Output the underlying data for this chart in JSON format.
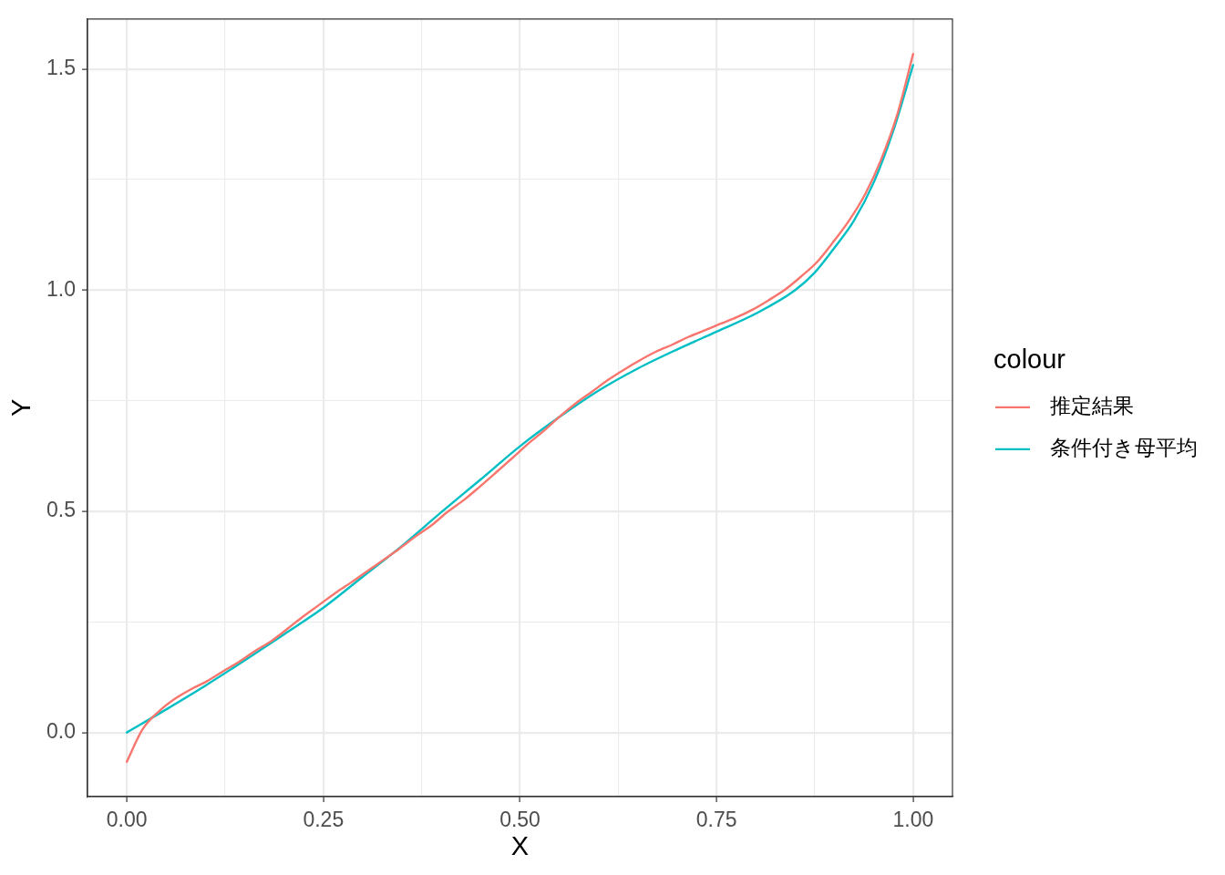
{
  "chart_data": {
    "type": "line",
    "xlabel": "X",
    "ylabel": "Y",
    "legend_title": "colour",
    "legend": "right",
    "grid": true,
    "xlim": [
      -0.05,
      1.05
    ],
    "ylim": [
      -0.145,
      1.613
    ],
    "xticks": [
      {
        "value": 0,
        "label": "0.00"
      },
      {
        "value": 0.125,
        "label": null
      },
      {
        "value": 0.25,
        "label": "0.25"
      },
      {
        "value": 0.375,
        "label": null
      },
      {
        "value": 0.5,
        "label": "0.50"
      },
      {
        "value": 0.625,
        "label": null
      },
      {
        "value": 0.75,
        "label": "0.75"
      },
      {
        "value": 0.875,
        "label": null
      },
      {
        "value": 1,
        "label": "1.00"
      }
    ],
    "yticks": [
      {
        "value": 0,
        "label": "0.0"
      },
      {
        "value": 0.25,
        "label": null
      },
      0.5,
      {
        "value": 0.75,
        "label": null
      },
      {
        "value": 1,
        "label": "1.0"
      },
      {
        "value": 1.25,
        "label": null
      },
      1.5
    ],
    "series": [
      {
        "name": "推定結果",
        "color": "#f8766d",
        "x": [
          0,
          0.02,
          0.041,
          0.061,
          0.082,
          0.102,
          0.122,
          0.143,
          0.163,
          0.184,
          0.204,
          0.224,
          0.245,
          0.265,
          0.286,
          0.306,
          0.327,
          0.347,
          0.367,
          0.388,
          0.408,
          0.429,
          0.449,
          0.469,
          0.49,
          0.51,
          0.531,
          0.551,
          0.571,
          0.592,
          0.612,
          0.633,
          0.653,
          0.673,
          0.694,
          0.714,
          0.735,
          0.755,
          0.776,
          0.796,
          0.816,
          0.837,
          0.857,
          0.878,
          0.898,
          0.918,
          0.939,
          0.959,
          0.98,
          1
        ],
        "values": [
          -0.066,
          0.007,
          0.048,
          0.076,
          0.098,
          0.116,
          0.138,
          0.16,
          0.184,
          0.207,
          0.234,
          0.262,
          0.289,
          0.315,
          0.34,
          0.365,
          0.391,
          0.416,
          0.443,
          0.469,
          0.499,
          0.526,
          0.556,
          0.587,
          0.62,
          0.652,
          0.683,
          0.715,
          0.744,
          0.771,
          0.797,
          0.821,
          0.842,
          0.861,
          0.877,
          0.894,
          0.909,
          0.924,
          0.939,
          0.956,
          0.977,
          1.001,
          1.03,
          1.064,
          1.108,
          1.156,
          1.217,
          1.294,
          1.398,
          1.534
        ]
      },
      {
        "name": "条件付き母平均",
        "color": "#00bfc4",
        "x": [
          0,
          0.05,
          0.1,
          0.15,
          0.2,
          0.25,
          0.3,
          0.35,
          0.4,
          0.45,
          0.5,
          0.55,
          0.6,
          0.65,
          0.7,
          0.75,
          0.8,
          0.85,
          0.875,
          0.9,
          0.925,
          0.95,
          0.975,
          1
        ],
        "values": [
          0,
          0.052,
          0.106,
          0.163,
          0.222,
          0.282,
          0.352,
          0.422,
          0.498,
          0.572,
          0.647,
          0.713,
          0.773,
          0.823,
          0.866,
          0.906,
          0.947,
          1.0,
          1.04,
          1.096,
          1.158,
          1.244,
          1.362,
          1.509
        ]
      }
    ]
  }
}
